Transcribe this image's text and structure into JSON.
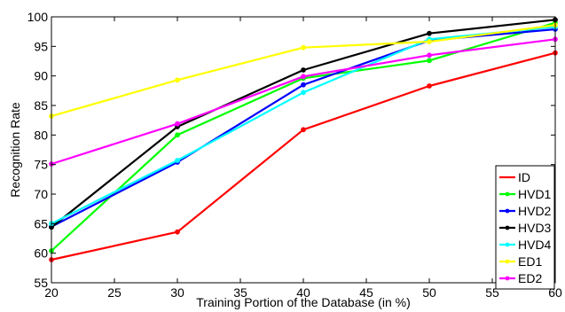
{
  "chart_data": {
    "type": "line",
    "title": "",
    "xlabel": "Training Portion of the Database (in %)",
    "ylabel": "Recognition Rate",
    "xlim": [
      20,
      60
    ],
    "ylim": [
      55,
      100
    ],
    "xticks": [
      "20",
      "25",
      "30",
      "35",
      "40",
      "45",
      "50",
      "55",
      "60"
    ],
    "yticks": [
      "55",
      "60",
      "65",
      "70",
      "75",
      "80",
      "85",
      "90",
      "95",
      "100"
    ],
    "grid": false,
    "legend_position": "bottom-right",
    "x": [
      20,
      30,
      40,
      50,
      60
    ],
    "series": [
      {
        "name": "ID",
        "color": "#ff0000",
        "values": [
          58.9,
          63.6,
          80.9,
          88.3,
          93.9
        ]
      },
      {
        "name": "HVD1",
        "color": "#00ff00",
        "values": [
          60.4,
          80.0,
          89.6,
          92.6,
          99.0
        ]
      },
      {
        "name": "HVD2",
        "color": "#0000ff",
        "values": [
          64.5,
          75.4,
          88.5,
          96.0,
          97.9
        ]
      },
      {
        "name": "HVD3",
        "color": "#000000",
        "values": [
          64.4,
          81.4,
          91.0,
          97.2,
          99.5
        ]
      },
      {
        "name": "HVD4",
        "color": "#00ffff",
        "values": [
          65.0,
          75.7,
          87.2,
          96.2,
          98.3
        ]
      },
      {
        "name": "ED1",
        "color": "#ffff00",
        "values": [
          83.2,
          89.3,
          94.8,
          95.8,
          98.6
        ]
      },
      {
        "name": "ED2",
        "color": "#ff00ff",
        "values": [
          75.1,
          81.9,
          89.9,
          93.5,
          96.2
        ]
      }
    ]
  }
}
